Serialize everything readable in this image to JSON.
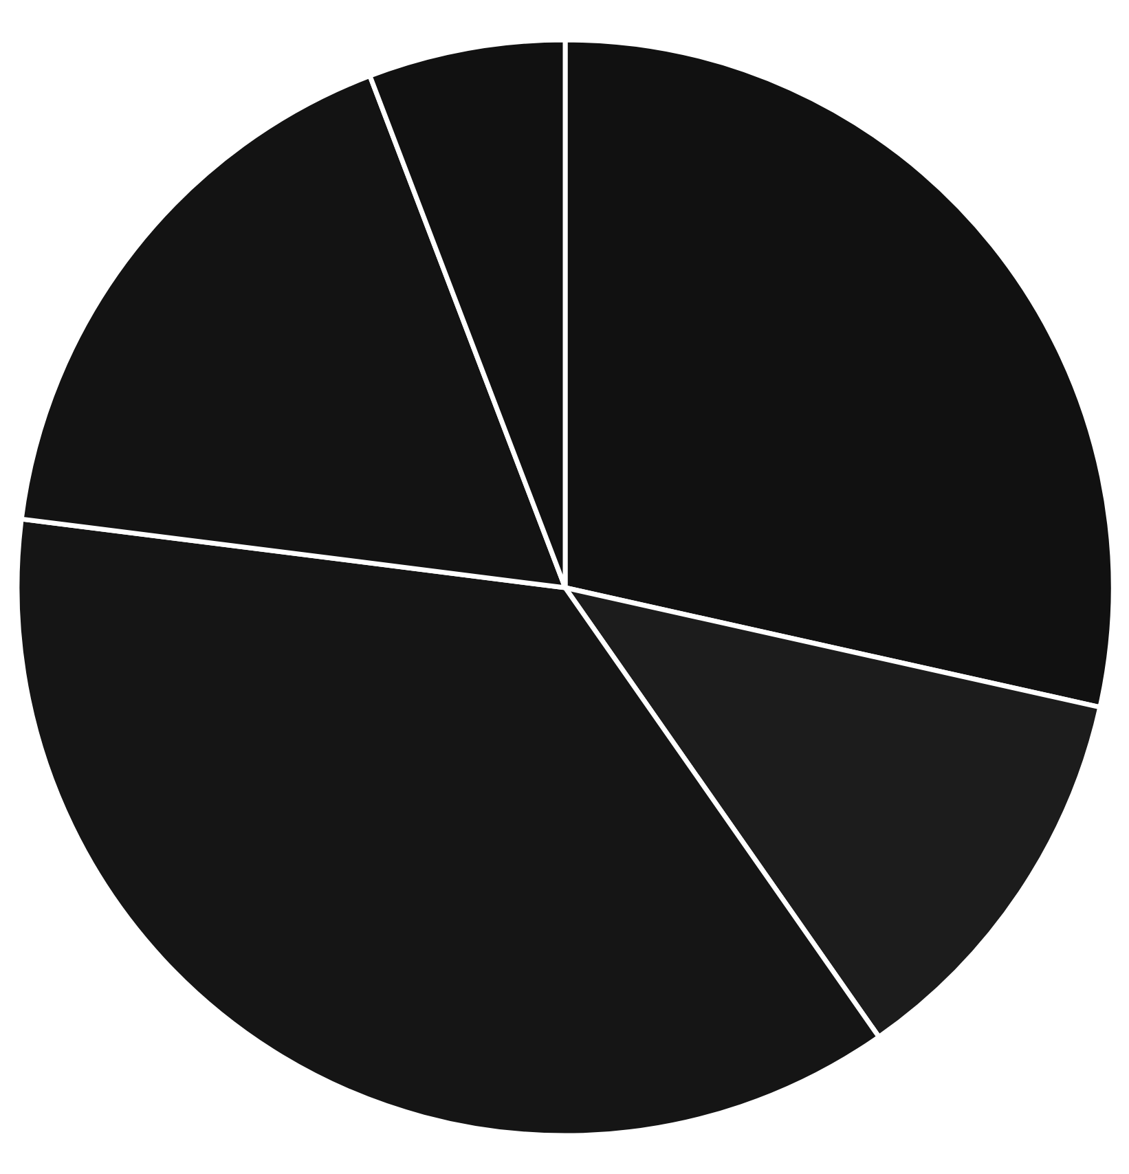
{
  "chart_data": {
    "type": "pie",
    "categories": [
      null,
      null,
      null,
      null,
      null
    ],
    "values": [
      28.5,
      11.8,
      36.7,
      17.2,
      5.8
    ],
    "colors": [
      "#111111",
      "#1c1c1c",
      "#151515",
      "#131313",
      "#111111"
    ]
  }
}
